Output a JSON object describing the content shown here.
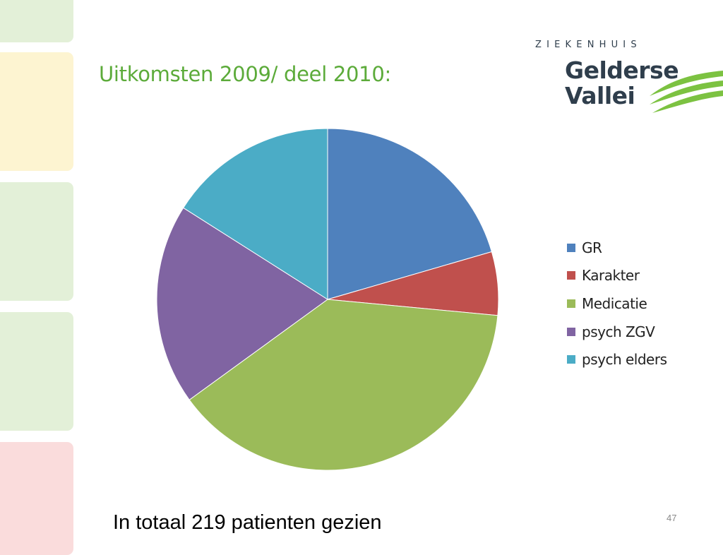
{
  "slide": {
    "title": "Uitkomsten 2009/ deel 2010:",
    "footer_note": "In totaal 219 patienten gezien",
    "page_number": "47"
  },
  "logo": {
    "line_small": "ZIEKENHUIS",
    "line1": "Gelderse",
    "line2": "Vallei",
    "text_color": "#2f3e4c",
    "wave_color": "#7cc241"
  },
  "chart_data": {
    "type": "pie",
    "title": "",
    "legend_position": "right",
    "series": [
      {
        "name": "GR",
        "value": 20.5,
        "color": "#4f81bd"
      },
      {
        "name": "Karakter",
        "value": 6.0,
        "color": "#c0504d"
      },
      {
        "name": "Medicatie",
        "value": 38.5,
        "color": "#9bbb59"
      },
      {
        "name": "psych ZGV",
        "value": 19.0,
        "color": "#8064a2"
      },
      {
        "name": "psych elders",
        "value": 16.0,
        "color": "#4bacc6"
      }
    ]
  }
}
